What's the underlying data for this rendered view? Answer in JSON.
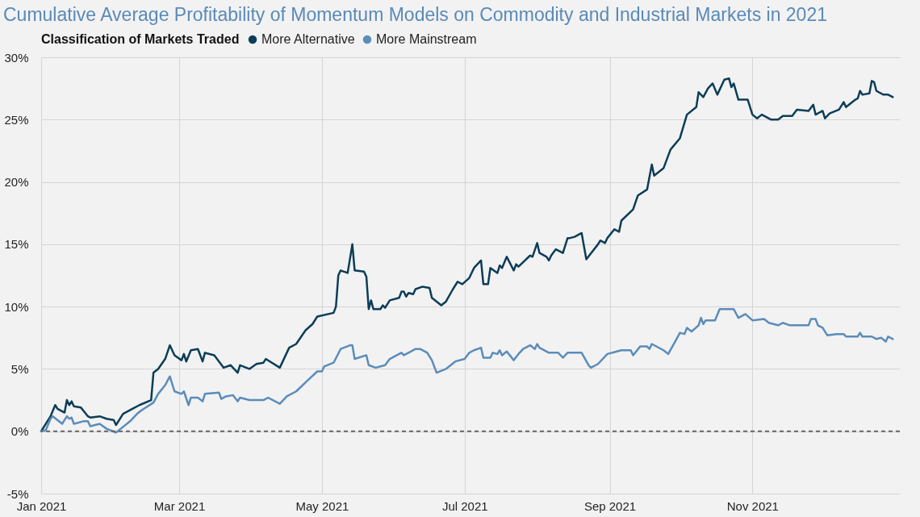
{
  "chart_data": {
    "type": "line",
    "title": "Cumulative Average Profitability of Momentum Models on Commodity and Industrial Markets in 2021",
    "legend_title": "Classification of Markets Traded",
    "legend": "top left",
    "grid": true,
    "line_style": "solid",
    "marker": "none",
    "xlim": [
      "2021-01-01",
      "2022-01-03"
    ],
    "xticks": [
      {
        "value": "2021-01-01",
        "label": "Jan 2021"
      },
      {
        "value": "2021-03-01",
        "label": "Mar 2021"
      },
      {
        "value": "2021-05-01",
        "label": "May 2021"
      },
      {
        "value": "2021-07-01",
        "label": "Jul 2021"
      },
      {
        "value": "2021-09-01",
        "label": "Sep 2021"
      },
      {
        "value": "2021-11-01",
        "label": "Nov 2021"
      }
    ],
    "ylim": [
      -5,
      30
    ],
    "yticks": [
      {
        "value": -5,
        "label": "-5%"
      },
      {
        "value": 0,
        "label": "0%"
      },
      {
        "value": 5,
        "label": "5%"
      },
      {
        "value": 10,
        "label": "10%"
      },
      {
        "value": 15,
        "label": "15%"
      },
      {
        "value": 20,
        "label": "20%"
      },
      {
        "value": 25,
        "label": "25%"
      },
      {
        "value": 30,
        "label": "30%"
      }
    ],
    "ref_lines": [
      {
        "axis": "y",
        "value": 0,
        "label": null,
        "color": "#666666",
        "line_style": "dashed"
      }
    ],
    "series": [
      {
        "name": "More Alternative",
        "color": "#0c3d57",
        "x": [
          "2021-01-01",
          "2021-01-05",
          "2021-01-07",
          "2021-01-08",
          "2021-01-11",
          "2021-01-12",
          "2021-01-13",
          "2021-01-14",
          "2021-01-15",
          "2021-01-18",
          "2021-01-21",
          "2021-01-22",
          "2021-01-26",
          "2021-01-29",
          "2021-02-01",
          "2021-02-02",
          "2021-02-05",
          "2021-02-09",
          "2021-02-12",
          "2021-02-17",
          "2021-02-18",
          "2021-02-20",
          "2021-02-23",
          "2021-02-25",
          "2021-02-27",
          "2021-03-02",
          "2021-03-03",
          "2021-03-04",
          "2021-03-06",
          "2021-03-09",
          "2021-03-11",
          "2021-03-12",
          "2021-03-16",
          "2021-03-20",
          "2021-03-23",
          "2021-03-26",
          "2021-03-27",
          "2021-03-31",
          "2021-04-03",
          "2021-04-06",
          "2021-04-07",
          "2021-04-13",
          "2021-04-17",
          "2021-04-20",
          "2021-04-24",
          "2021-04-27",
          "2021-04-29",
          "2021-05-06",
          "2021-05-07",
          "2021-05-08",
          "2021-05-09",
          "2021-05-12",
          "2021-05-14",
          "2021-05-15",
          "2021-05-19",
          "2021-05-20",
          "2021-05-21",
          "2021-05-22",
          "2021-05-23",
          "2021-05-26",
          "2021-05-27",
          "2021-05-28",
          "2021-05-30",
          "2021-06-03",
          "2021-06-04",
          "2021-06-05",
          "2021-06-06",
          "2021-06-07",
          "2021-06-09",
          "2021-06-10",
          "2021-06-13",
          "2021-06-16",
          "2021-06-17",
          "2021-06-21",
          "2021-06-23",
          "2021-06-26",
          "2021-06-28",
          "2021-06-30",
          "2021-07-03",
          "2021-07-05",
          "2021-07-08",
          "2021-07-09",
          "2021-07-11",
          "2021-07-12",
          "2021-07-15",
          "2021-07-16",
          "2021-07-17",
          "2021-07-19",
          "2021-07-22",
          "2021-07-23",
          "2021-07-24",
          "2021-07-29",
          "2021-07-30",
          "2021-08-01",
          "2021-08-02",
          "2021-08-05",
          "2021-08-06",
          "2021-08-07",
          "2021-08-09",
          "2021-08-12",
          "2021-08-14",
          "2021-08-15",
          "2021-08-17",
          "2021-08-20",
          "2021-08-22",
          "2021-08-27",
          "2021-08-28",
          "2021-08-30",
          "2021-08-31",
          "2021-09-03",
          "2021-09-05",
          "2021-09-06",
          "2021-09-11",
          "2021-09-13",
          "2021-09-17",
          "2021-09-19",
          "2021-09-20",
          "2021-09-24",
          "2021-09-27",
          "2021-10-01",
          "2021-10-04",
          "2021-10-08",
          "2021-10-09",
          "2021-10-11",
          "2021-10-13",
          "2021-10-15",
          "2021-10-17",
          "2021-10-20",
          "2021-10-22",
          "2021-10-23",
          "2021-10-24",
          "2021-10-26",
          "2021-10-30",
          "2021-11-01",
          "2021-11-03",
          "2021-11-05",
          "2021-11-09",
          "2021-11-12",
          "2021-11-14",
          "2021-11-18",
          "2021-11-20",
          "2021-11-25",
          "2021-11-27",
          "2021-11-28",
          "2021-12-01",
          "2021-12-02",
          "2021-12-04",
          "2021-12-08",
          "2021-12-10",
          "2021-12-11",
          "2021-12-15",
          "2021-12-16",
          "2021-12-17",
          "2021-12-18",
          "2021-12-21",
          "2021-12-22",
          "2021-12-23",
          "2021-12-24",
          "2021-12-27",
          "2021-12-29",
          "2021-12-31"
        ],
        "values": [
          0,
          1.2,
          2.1,
          1.8,
          1.5,
          2.5,
          2.1,
          2.4,
          2.0,
          1.9,
          1.2,
          1.1,
          1.2,
          1.0,
          0.9,
          0.5,
          1.4,
          1.8,
          2.1,
          2.5,
          4.7,
          5.0,
          5.8,
          6.9,
          6.1,
          5.7,
          6.2,
          5.6,
          6.5,
          6.6,
          5.6,
          6.3,
          6.1,
          5.1,
          5.3,
          4.7,
          5.3,
          5.0,
          5.4,
          5.5,
          5.8,
          5.1,
          6.7,
          7.0,
          8.1,
          8.6,
          9.2,
          9.5,
          10.0,
          12.5,
          12.9,
          12.7,
          15.0,
          12.9,
          12.8,
          12.4,
          9.8,
          10.5,
          9.8,
          9.8,
          10.1,
          9.9,
          10.5,
          10.7,
          11.2,
          11.2,
          10.8,
          11.1,
          11.0,
          11.4,
          11.6,
          11.5,
          10.7,
          10.1,
          10.4,
          11.4,
          12.0,
          11.8,
          12.3,
          13.1,
          13.7,
          11.8,
          11.8,
          13.1,
          12.7,
          13.3,
          13.1,
          14.0,
          12.9,
          13.4,
          13.2,
          14.1,
          14.0,
          15.1,
          14.3,
          14.0,
          13.7,
          14.1,
          14.6,
          14.3,
          15.5,
          15.5,
          15.6,
          15.9,
          13.8,
          15.0,
          15.3,
          15.1,
          15.5,
          16.2,
          16.0,
          16.9,
          17.8,
          18.9,
          19.4,
          21.4,
          20.5,
          21.1,
          22.6,
          23.5,
          25.4,
          26.0,
          27.2,
          26.8,
          27.5,
          27.9,
          27.0,
          28.2,
          28.3,
          27.6,
          27.9,
          26.6,
          26.6,
          25.4,
          25.1,
          25.4,
          25.0,
          25.0,
          25.3,
          25.3,
          25.8,
          25.7,
          26.2,
          25.4,
          25.7,
          25.1,
          25.5,
          25.8,
          26.4,
          26.0,
          26.6,
          26.7,
          27.3,
          27.0,
          27.1,
          28.1,
          28.0,
          27.3,
          27.0,
          27.0,
          26.8
        ]
      },
      {
        "name": "More Mainstream",
        "color": "#5b8cba",
        "x": [
          "2021-01-01",
          "2021-01-03",
          "2021-01-05",
          "2021-01-06",
          "2021-01-10",
          "2021-01-12",
          "2021-01-13",
          "2021-01-14",
          "2021-01-15",
          "2021-01-19",
          "2021-01-21",
          "2021-01-22",
          "2021-01-26",
          "2021-01-29",
          "2021-02-02",
          "2021-02-04",
          "2021-02-08",
          "2021-02-11",
          "2021-02-13",
          "2021-02-18",
          "2021-02-20",
          "2021-02-23",
          "2021-02-25",
          "2021-02-27",
          "2021-03-02",
          "2021-03-03",
          "2021-03-05",
          "2021-03-06",
          "2021-03-09",
          "2021-03-11",
          "2021-03-12",
          "2021-03-18",
          "2021-03-19",
          "2021-03-21",
          "2021-03-24",
          "2021-03-26",
          "2021-03-27",
          "2021-03-31",
          "2021-04-06",
          "2021-04-08",
          "2021-04-13",
          "2021-04-16",
          "2021-04-20",
          "2021-04-25",
          "2021-04-29",
          "2021-05-01",
          "2021-05-02",
          "2021-05-06",
          "2021-05-09",
          "2021-05-13",
          "2021-05-14",
          "2021-05-15",
          "2021-05-20",
          "2021-05-21",
          "2021-05-24",
          "2021-05-28",
          "2021-05-30",
          "2021-06-02",
          "2021-06-04",
          "2021-06-05",
          "2021-06-07",
          "2021-06-10",
          "2021-06-12",
          "2021-06-15",
          "2021-06-17",
          "2021-06-19",
          "2021-06-23",
          "2021-06-27",
          "2021-07-01",
          "2021-07-03",
          "2021-07-05",
          "2021-07-08",
          "2021-07-09",
          "2021-07-12",
          "2021-07-13",
          "2021-07-15",
          "2021-07-16",
          "2021-07-17",
          "2021-07-19",
          "2021-07-22",
          "2021-07-24",
          "2021-07-26",
          "2021-07-29",
          "2021-07-31",
          "2021-08-01",
          "2021-08-02",
          "2021-08-06",
          "2021-08-10",
          "2021-08-12",
          "2021-08-14",
          "2021-08-20",
          "2021-08-23",
          "2021-08-24",
          "2021-08-27",
          "2021-08-31",
          "2021-09-06",
          "2021-09-10",
          "2021-09-11",
          "2021-09-14",
          "2021-09-17",
          "2021-09-18",
          "2021-09-19",
          "2021-09-24",
          "2021-09-26",
          "2021-09-29",
          "2021-10-01",
          "2021-10-03",
          "2021-10-04",
          "2021-10-06",
          "2021-10-09",
          "2021-10-10",
          "2021-10-11",
          "2021-10-12",
          "2021-10-16",
          "2021-10-18",
          "2021-10-24",
          "2021-10-26",
          "2021-10-29",
          "2021-11-01",
          "2021-11-06",
          "2021-11-08",
          "2021-11-12",
          "2021-11-14",
          "2021-11-17",
          "2021-11-19",
          "2021-11-25",
          "2021-11-26",
          "2021-11-28",
          "2021-11-29",
          "2021-12-01",
          "2021-12-03",
          "2021-12-07",
          "2021-12-10",
          "2021-12-11",
          "2021-12-16",
          "2021-12-17",
          "2021-12-18",
          "2021-12-22",
          "2021-12-24",
          "2021-12-26",
          "2021-12-28",
          "2021-12-29",
          "2021-12-31"
        ],
        "values": [
          0,
          0.1,
          1.0,
          1.2,
          0.6,
          1.2,
          1.0,
          1.1,
          0.6,
          0.8,
          0.8,
          0.4,
          0.6,
          0.2,
          -0.1,
          0.2,
          0.8,
          1.4,
          1.7,
          2.3,
          3.0,
          3.7,
          4.4,
          3.2,
          3.0,
          3.2,
          2.1,
          2.7,
          2.7,
          2.4,
          3.0,
          3.1,
          2.6,
          2.8,
          2.9,
          2.4,
          2.7,
          2.5,
          2.5,
          2.7,
          2.2,
          2.8,
          3.2,
          4.1,
          4.8,
          4.8,
          5.2,
          5.5,
          6.6,
          6.9,
          6.9,
          5.8,
          6.1,
          5.3,
          5.1,
          5.3,
          5.8,
          6.1,
          6.3,
          6.1,
          6.3,
          6.6,
          6.6,
          6.3,
          5.7,
          4.7,
          5.0,
          5.6,
          5.8,
          6.3,
          6.5,
          6.7,
          5.9,
          5.9,
          6.3,
          6.2,
          6.5,
          6.1,
          6.4,
          5.7,
          6.2,
          6.6,
          6.9,
          6.6,
          7.0,
          6.7,
          6.3,
          6.3,
          5.9,
          6.3,
          6.3,
          5.3,
          5.1,
          5.4,
          6.2,
          6.5,
          6.5,
          6.1,
          6.8,
          6.8,
          6.6,
          7.0,
          6.5,
          6.2,
          7.2,
          7.9,
          7.8,
          8.3,
          8.0,
          8.5,
          9.1,
          8.6,
          8.9,
          8.9,
          9.8,
          9.8,
          9.1,
          9.4,
          8.9,
          9.0,
          8.7,
          8.5,
          8.7,
          8.5,
          8.5,
          8.5,
          9.0,
          9.0,
          8.5,
          8.3,
          7.7,
          7.8,
          7.8,
          7.6,
          7.6,
          7.9,
          7.6,
          7.6,
          7.4,
          7.5,
          7.2,
          7.6,
          7.4
        ]
      }
    ]
  }
}
